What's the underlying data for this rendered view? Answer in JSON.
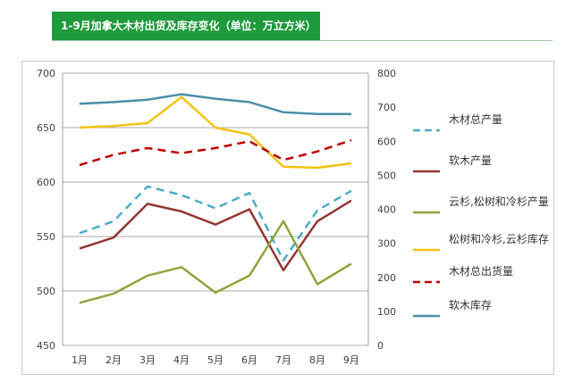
{
  "header": {
    "title": "1-9月加拿大木材出货及库存变化（单位：万立方米）"
  },
  "chart_data": {
    "type": "line",
    "categories": [
      "1月",
      "2月",
      "3月",
      "4月",
      "5月",
      "6月",
      "7月",
      "8月",
      "9月"
    ],
    "y_left": {
      "min": 450,
      "max": 700,
      "ticks": [
        "450",
        "500",
        "550",
        "600",
        "650",
        "700"
      ]
    },
    "y_right": {
      "min": 0,
      "max": 800,
      "ticks": [
        "0",
        "100",
        "200",
        "300",
        "400",
        "500",
        "600",
        "700",
        "800"
      ]
    },
    "grid": true,
    "legend_position": "right",
    "series": [
      {
        "name": "木材总产量",
        "axis": "left",
        "color": "#4bacc6",
        "dash": true,
        "values": [
          553,
          564,
          596,
          588,
          576,
          590,
          528,
          574,
          592
        ]
      },
      {
        "name": "软木产量",
        "axis": "left",
        "color": "#943634",
        "dash": false,
        "values": [
          539,
          549,
          580,
          573,
          561,
          575,
          519,
          564,
          583
        ]
      },
      {
        "name": "云杉,松树和冷杉产量",
        "axis": "right",
        "color": "#8ea53e",
        "dash": false,
        "values": [
          125,
          152,
          205,
          230,
          155,
          205,
          365,
          180,
          240
        ]
      },
      {
        "name": "松树和冷杉,云杉库存",
        "axis": "right",
        "color": "#f2c314",
        "dash": false,
        "values": [
          640,
          645,
          653,
          730,
          640,
          620,
          525,
          522,
          535
        ]
      },
      {
        "name": "木材总出货量",
        "axis": "right",
        "color": "#c00000",
        "dash": true,
        "values": [
          530,
          560,
          580,
          565,
          580,
          600,
          545,
          570,
          603
        ]
      },
      {
        "name": "软木库存",
        "axis": "right",
        "color": "#4a8fa8",
        "dash": false,
        "values": [
          710,
          715,
          722,
          738,
          725,
          715,
          685,
          680,
          680
        ]
      }
    ]
  }
}
